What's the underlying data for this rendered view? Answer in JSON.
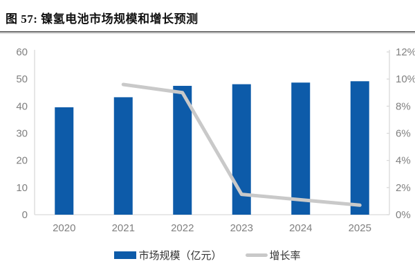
{
  "header": {
    "title": "图 57: 镍氢电池市场规模和增长预测"
  },
  "chart_data": {
    "type": "bar",
    "subtype": "bar+line-combo",
    "title": "镍氢电池市场规模和增长预测",
    "categories": [
      "2020",
      "2021",
      "2022",
      "2023",
      "2024",
      "2025"
    ],
    "series": [
      {
        "name": "市场规模（亿元）",
        "type": "bar",
        "axis": "left",
        "values": [
          39.6,
          43.3,
          47.5,
          48.1,
          48.7,
          49.2
        ]
      },
      {
        "name": "增长率",
        "type": "line",
        "axis": "right",
        "values": [
          null,
          9.6,
          9.0,
          1.5,
          1.1,
          0.7
        ],
        "unit": "%"
      }
    ],
    "left_axis": {
      "min": 0,
      "max": 60,
      "ticks": [
        "0",
        "10",
        "20",
        "30",
        "40",
        "50",
        "60"
      ]
    },
    "right_axis": {
      "min": 0,
      "max": 12,
      "ticks": [
        "0%",
        "2%",
        "4%",
        "6%",
        "8%",
        "10%",
        "12%"
      ]
    },
    "grid": false,
    "legend_position": "bottom"
  },
  "colors": {
    "bar": "#0d5ba9",
    "line": "#c9c9c9",
    "axis": "#d9d9d9",
    "tick_label": "#7f7f7f",
    "legend_text": "#333333",
    "title_text": "#111111",
    "rule_dark": "#6a6a6a",
    "rule_light": "#cfcfcf"
  }
}
